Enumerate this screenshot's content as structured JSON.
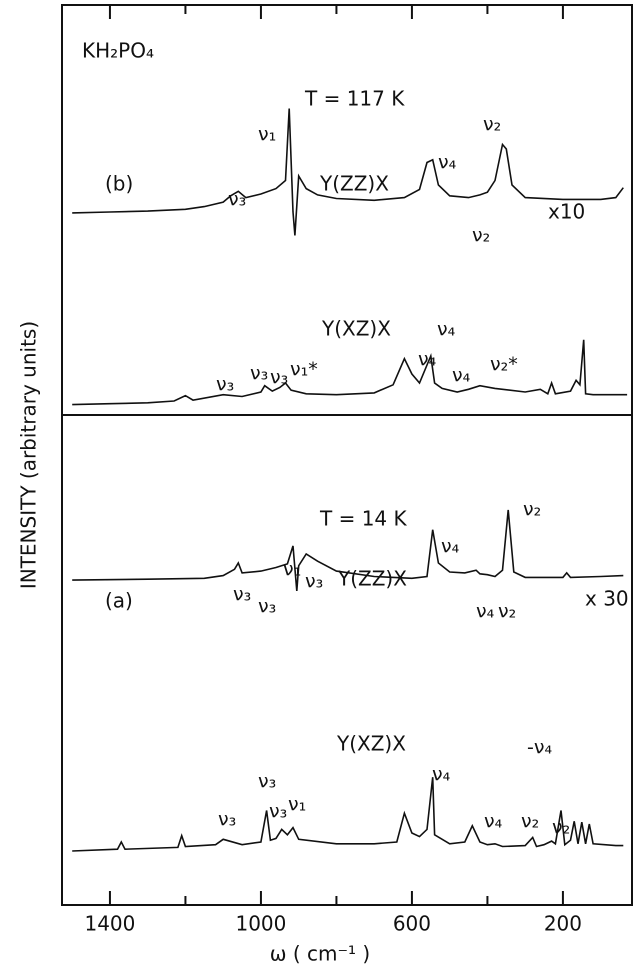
{
  "chart_data": {
    "type": "line",
    "title": "KH₂PO₄",
    "x_label": "ω ( cm⁻¹ )",
    "y_label": "INTENSITY (arbitrary units)",
    "xlim": [
      1527,
      17
    ],
    "ylim": [
      0,
      100
    ],
    "xticks": [
      1400,
      1000,
      600,
      200
    ],
    "minor_xticks": [
      1200,
      800,
      400
    ],
    "panel_labels": [
      "(b)",
      "(a)"
    ],
    "temperatures": [
      "T = 117 K",
      "T = 14 K"
    ],
    "scale_labels": [
      "x10",
      "x 30"
    ],
    "series": [
      {
        "name": "Y(ZZ)X",
        "color": "#111111",
        "x": [
          1500,
          1400,
          1300,
          1200,
          1150,
          1100,
          1080,
          1060,
          1040,
          1000,
          960,
          935,
          925,
          915,
          910,
          900,
          880,
          850,
          800,
          700,
          620,
          580,
          560,
          545,
          530,
          500,
          450,
          420,
          400,
          380,
          360,
          350,
          335,
          300,
          200,
          100,
          60,
          40
        ],
        "values": [
          76.9,
          77.0,
          77.1,
          77.3,
          77.6,
          78.1,
          78.8,
          79.3,
          78.6,
          79.0,
          79.6,
          80.5,
          88.5,
          77.0,
          74.4,
          81.0,
          79.6,
          78.9,
          78.5,
          78.3,
          78.6,
          79.5,
          82.5,
          82.8,
          80.0,
          78.8,
          78.6,
          78.9,
          79.2,
          80.5,
          84.5,
          84.0,
          80.0,
          78.6,
          78.4,
          78.4,
          78.6,
          79.7
        ]
      },
      {
        "name": "Y(XZ)X",
        "color": "#111111",
        "x": [
          1500,
          1400,
          1300,
          1230,
          1200,
          1180,
          1100,
          1050,
          1000,
          990,
          970,
          950,
          935,
          920,
          880,
          800,
          700,
          650,
          620,
          600,
          580,
          560,
          550,
          540,
          520,
          480,
          450,
          420,
          380,
          300,
          260,
          240,
          230,
          220,
          180,
          165,
          155,
          145,
          140,
          120,
          60,
          30
        ],
        "values": [
          55.6,
          55.7,
          55.8,
          56.0,
          56.6,
          56.1,
          56.7,
          56.5,
          57.0,
          57.7,
          57.1,
          57.5,
          58.0,
          57.2,
          56.8,
          56.7,
          56.9,
          57.8,
          60.7,
          59.0,
          58.0,
          60.0,
          61.0,
          58.0,
          57.4,
          57.0,
          57.3,
          57.7,
          57.4,
          57.0,
          57.3,
          56.8,
          58.0,
          56.8,
          57.1,
          58.3,
          57.8,
          62.8,
          56.8,
          56.7,
          56.7,
          56.7
        ]
      },
      {
        "name": "Y(ZZ)X",
        "color": "#111111",
        "x": [
          1500,
          1300,
          1150,
          1100,
          1070,
          1060,
          1050,
          1000,
          960,
          930,
          915,
          905,
          900,
          880,
          850,
          800,
          700,
          600,
          560,
          545,
          530,
          500,
          460,
          430,
          420,
          400,
          380,
          360,
          345,
          330,
          300,
          200,
          190,
          180,
          100,
          40
        ],
        "values": [
          36.1,
          36.2,
          36.3,
          36.6,
          37.3,
          38.0,
          36.9,
          37.1,
          37.5,
          37.9,
          39.9,
          34.9,
          37.7,
          39.0,
          38.2,
          37.1,
          36.5,
          36.3,
          36.5,
          41.7,
          38.0,
          37.0,
          36.9,
          37.2,
          36.8,
          36.7,
          36.5,
          37.2,
          43.9,
          37.0,
          36.4,
          36.4,
          36.9,
          36.4,
          36.5,
          36.6
        ]
      },
      {
        "name": "Y(XZ)X",
        "color": "#111111",
        "x": [
          1500,
          1380,
          1370,
          1360,
          1220,
          1210,
          1200,
          1120,
          1100,
          1050,
          1000,
          985,
          975,
          960,
          945,
          930,
          915,
          900,
          800,
          700,
          640,
          620,
          600,
          580,
          560,
          545,
          540,
          500,
          460,
          440,
          420,
          400,
          380,
          360,
          300,
          280,
          270,
          250,
          230,
          220,
          205,
          195,
          180,
          170,
          160,
          150,
          140,
          130,
          120,
          60,
          40
        ],
        "values": [
          6.0,
          6.2,
          7.0,
          6.2,
          6.4,
          7.7,
          6.5,
          6.7,
          7.3,
          6.7,
          7.0,
          10.5,
          7.2,
          7.4,
          8.4,
          7.8,
          8.6,
          7.3,
          6.8,
          6.8,
          7.0,
          10.2,
          8.0,
          7.6,
          8.4,
          14.2,
          7.8,
          6.8,
          7.0,
          8.8,
          7.0,
          6.7,
          6.8,
          6.5,
          6.6,
          7.5,
          6.5,
          6.7,
          7.1,
          6.8,
          10.5,
          6.7,
          7.2,
          9.3,
          6.8,
          9.2,
          6.8,
          9.0,
          6.8,
          6.6,
          6.6
        ]
      }
    ],
    "annotations": [
      "ν₃",
      "ν₁",
      "ν₄",
      "ν₂",
      "ν₂",
      "ν₃",
      "ν₃",
      "ν₃",
      "ν₁*",
      "ν₄",
      "ν₄",
      "ν₄",
      "ν₂*",
      "ν₃",
      "ν₃",
      "ν₁",
      "ν₃",
      "ν₄",
      "ν₂",
      "ν₄",
      "ν₂",
      "ν₃",
      "ν₃",
      "ν₃",
      "ν₁",
      "ν₄",
      "-ν₄",
      "ν₄",
      "ν₂",
      "ν₂"
    ]
  }
}
